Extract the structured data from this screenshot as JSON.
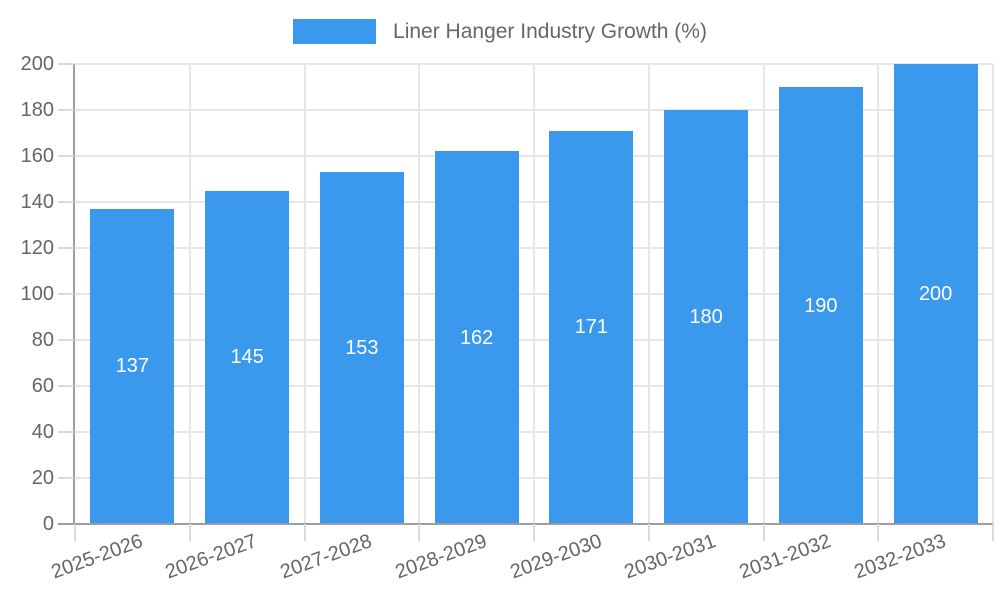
{
  "chart_data": {
    "type": "bar",
    "title": "Liner Hanger Industry Growth (%)",
    "categories": [
      "2025-2026",
      "2026-2027",
      "2027-2028",
      "2028-2029",
      "2029-2030",
      "2030-2031",
      "2031-2032",
      "2032-2033"
    ],
    "values": [
      137,
      145,
      153,
      162,
      171,
      180,
      190,
      200
    ],
    "yticks": [
      0,
      20,
      40,
      60,
      80,
      100,
      120,
      140,
      160,
      180,
      200
    ],
    "ylim": [
      0,
      200
    ],
    "grid": true,
    "legend_position": "top",
    "bar_label_position": "center-inside",
    "x_label_rotation_deg": -20,
    "colors": {
      "bar": "#3a98ed",
      "bar_label": "#ffffff",
      "grid": "#e6e6e6",
      "axis": "#9e9e9e",
      "tick": "#dadada",
      "text": "#666666",
      "background": "#ffffff"
    }
  }
}
